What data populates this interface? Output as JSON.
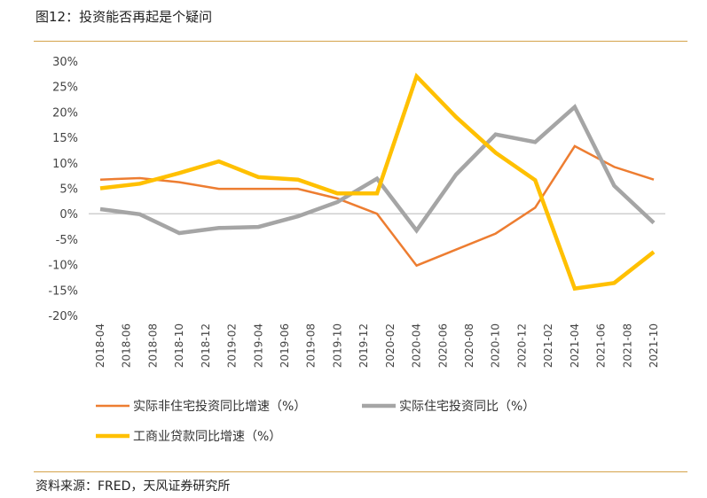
{
  "header": {
    "title": "图12：投资能否再起是个疑问"
  },
  "footer": {
    "source": "资料来源：FRED，天风证券研究所"
  },
  "chart_data": {
    "type": "line",
    "title": "",
    "xlabel": "",
    "ylabel": "",
    "ylim": [
      -20,
      30
    ],
    "y_ticks": [
      -20,
      -15,
      -10,
      -5,
      0,
      5,
      10,
      15,
      20,
      25,
      30
    ],
    "y_tick_labels": [
      "-20%",
      "-15%",
      "-10%",
      "-5%",
      "0%",
      "5%",
      "10%",
      "15%",
      "20%",
      "25%",
      "30%"
    ],
    "categories": [
      "2018-04",
      "2018-06",
      "2018-08",
      "2018-10",
      "2018-12",
      "2019-02",
      "2019-04",
      "2019-06",
      "2019-08",
      "2019-10",
      "2019-12",
      "2020-02",
      "2020-04",
      "2020-06",
      "2020-08",
      "2020-10",
      "2020-12",
      "2021-02",
      "2021-04",
      "2021-06",
      "2021-08",
      "2021-10"
    ],
    "x_tick_labels": [
      "2018-04",
      "2018-06",
      "2018-08",
      "2018-10",
      "2018-12",
      "2019-02",
      "2019-04",
      "2019-06",
      "2019-08",
      "2019-10",
      "2019-12",
      "2020-02",
      "2020-04",
      "2020-06",
      "2020-08",
      "2020-10",
      "2020-12",
      "2021-02",
      "2021-04",
      "2021-06",
      "2021-08",
      "2021-10"
    ],
    "grid": false,
    "legend": "bottom",
    "series": [
      {
        "name": "实际非住宅投资同比增速（%）",
        "color": "#ed7d31",
        "points": [
          [
            0,
            6.7
          ],
          [
            1.5,
            7.0
          ],
          [
            3,
            6.2
          ],
          [
            4.5,
            4.9
          ],
          [
            6,
            4.9
          ],
          [
            7.5,
            4.9
          ],
          [
            9,
            3.0
          ],
          [
            10.5,
            0.0
          ],
          [
            12,
            -10.2
          ],
          [
            15,
            -3.9
          ],
          [
            16.5,
            1.2
          ],
          [
            18,
            13.3
          ],
          [
            19.5,
            9.2
          ],
          [
            21,
            6.7
          ]
        ]
      },
      {
        "name": "实际住宅投资同比（%）",
        "color": "#a5a5a5",
        "points": [
          [
            0,
            0.9
          ],
          [
            1.5,
            -0.1
          ],
          [
            3,
            -3.8
          ],
          [
            4.5,
            -2.8
          ],
          [
            6,
            -2.6
          ],
          [
            7.5,
            -0.5
          ],
          [
            9,
            2.3
          ],
          [
            10.5,
            6.9
          ],
          [
            12,
            -3.3
          ],
          [
            13.5,
            7.7
          ],
          [
            15,
            15.6
          ],
          [
            16.5,
            14.1
          ],
          [
            18,
            21.0
          ],
          [
            19.5,
            5.5
          ],
          [
            21,
            -1.8
          ]
        ]
      },
      {
        "name": "工商业贷款同比增速（%）",
        "color": "#ffc000",
        "points": [
          [
            0,
            5.0
          ],
          [
            1.5,
            5.9
          ],
          [
            3,
            8.0
          ],
          [
            4.5,
            10.3
          ],
          [
            6,
            7.2
          ],
          [
            7.5,
            6.7
          ],
          [
            9,
            4.0
          ],
          [
            10.5,
            4.0
          ],
          [
            12,
            27.0
          ],
          [
            13.5,
            19.0
          ],
          [
            15,
            12.0
          ],
          [
            16.5,
            6.6
          ],
          [
            18,
            -14.7
          ],
          [
            19.5,
            -13.6
          ],
          [
            21,
            -7.5
          ]
        ]
      }
    ]
  }
}
